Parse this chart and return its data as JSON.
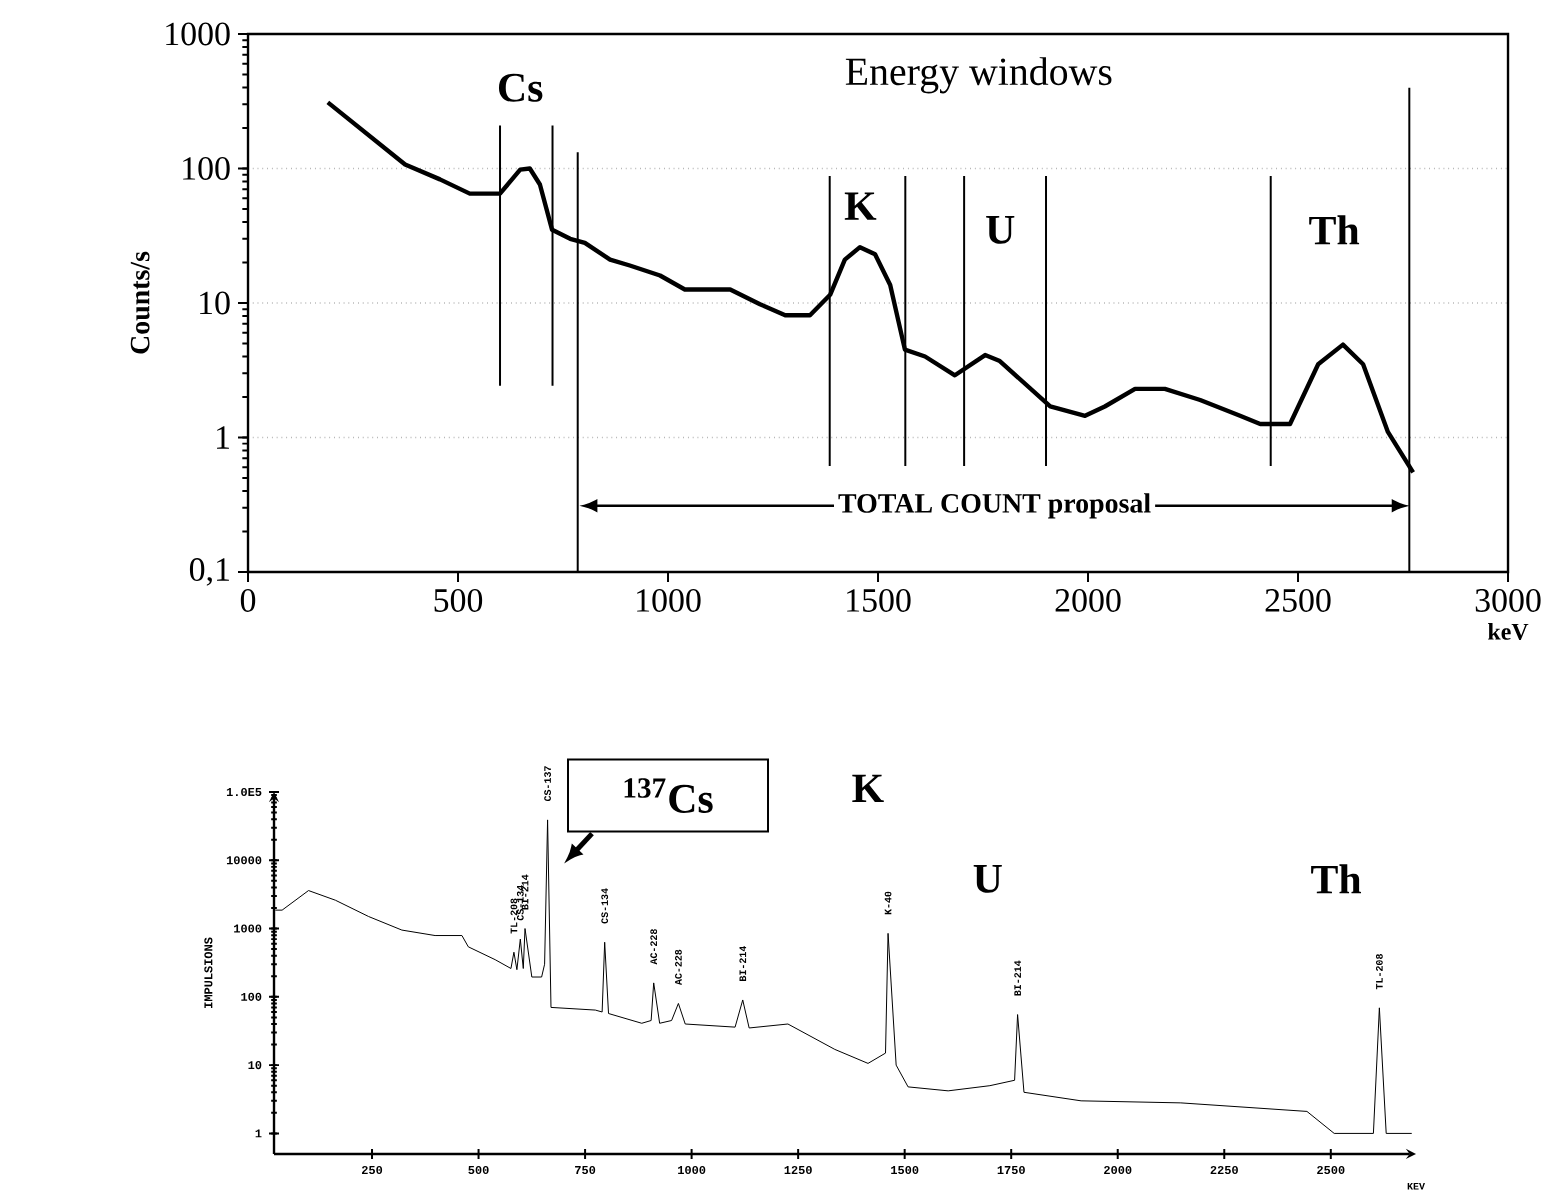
{
  "chart_data": [
    {
      "type": "line",
      "title": "Energy windows",
      "xlabel": "keV",
      "ylabel": "Counts/s",
      "color": "#000000",
      "log": "y",
      "x": [
        190,
        374,
        457,
        528,
        600,
        648,
        671,
        695,
        724,
        767,
        802,
        862,
        909,
        981,
        1040,
        1148,
        1219,
        1279,
        1338,
        1386,
        1421,
        1457,
        1493,
        1529,
        1564,
        1612,
        1683,
        1755,
        1790,
        1910,
        1993,
        2040,
        2112,
        2183,
        2267,
        2362,
        2410,
        2481,
        2548,
        2607,
        2655,
        2714,
        2774
      ],
      "values": [
        310,
        107,
        83,
        65,
        65,
        98,
        100,
        76,
        35,
        30,
        28,
        21,
        19,
        16,
        12.6,
        12.6,
        9.8,
        8.1,
        8.1,
        11.5,
        21,
        26,
        23,
        13.6,
        4.5,
        4.0,
        2.9,
        4.1,
        3.7,
        1.7,
        1.45,
        1.7,
        2.3,
        2.3,
        1.9,
        1.45,
        1.26,
        1.26,
        3.5,
        4.9,
        3.5,
        1.1,
        0.55
      ],
      "xlim": [
        0,
        3000
      ],
      "ylim": [
        0.1,
        1000
      ],
      "xticks": [
        0,
        500,
        1000,
        1500,
        2000,
        2500,
        3000
      ],
      "yticks": [
        {
          "value": 0.1,
          "label": "0,1"
        },
        1,
        10,
        100,
        1000
      ],
      "grid": "y",
      "ref_lines": [
        {
          "axis": "x",
          "value": 600
        },
        {
          "axis": "x",
          "value": 725
        },
        {
          "axis": "x",
          "value": 785
        },
        {
          "axis": "x",
          "value": 1385
        },
        {
          "axis": "x",
          "value": 1565
        },
        {
          "axis": "x",
          "value": 1705
        },
        {
          "axis": "x",
          "value": 1900
        },
        {
          "axis": "x",
          "value": 2435
        },
        {
          "axis": "x",
          "value": 2765
        }
      ],
      "annotations": [
        "Cs",
        "K",
        "U",
        "Th",
        "TOTAL COUNT  proposal"
      ]
    },
    {
      "type": "line",
      "xlabel": "KEV",
      "ylabel": "IMPULSIONS",
      "color": "#000000",
      "log": "y",
      "x": [
        23,
        39,
        101,
        164,
        242,
        320,
        398,
        461,
        476,
        539,
        576,
        583,
        590,
        598,
        605,
        609,
        625,
        648,
        655,
        662,
        670,
        774,
        790,
        796,
        805,
        883,
        905,
        911,
        925,
        953,
        969,
        985,
        1102,
        1120,
        1135,
        1226,
        1336,
        1414,
        1455,
        1461,
        1480,
        1508,
        1602,
        1700,
        1758,
        1765,
        1780,
        1914,
        2148,
        2444,
        2508,
        2600,
        2614,
        2630,
        2690
      ],
      "values": [
        1860,
        1860,
        3600,
        2600,
        1500,
        950,
        790,
        790,
        540,
        350,
        260,
        450,
        250,
        700,
        260,
        1000,
        195,
        195,
        300,
        39000,
        70,
        64,
        60,
        630,
        57,
        41,
        45,
        160,
        41,
        45,
        80,
        40,
        36,
        90,
        35,
        40,
        17,
        10.6,
        15,
        850,
        10,
        4.8,
        4.2,
        5,
        6,
        55,
        4,
        3,
        2.8,
        2.1,
        1,
        1,
        69,
        1,
        1
      ],
      "xlim": [
        20,
        2700
      ],
      "ylim": [
        0.5,
        100000
      ],
      "xticks": [
        250,
        500,
        750,
        1000,
        1250,
        1500,
        1750,
        2000,
        2250,
        2500
      ],
      "yticks": [
        1,
        10,
        100,
        1000,
        10000,
        {
          "value": 100000,
          "label": "1.0E5"
        }
      ],
      "annotations": [
        {
          "text": "TL-208",
          "x": 583,
          "y": 450
        },
        {
          "text": "CS-134",
          "x": 598,
          "y": 700
        },
        {
          "text": "BI-214",
          "x": 609,
          "y": 1000
        },
        {
          "text": "CS-137",
          "x": 662,
          "y": 39000
        },
        {
          "text": "CS-134",
          "x": 796,
          "y": 630
        },
        {
          "text": "AC-228",
          "x": 911,
          "y": 160
        },
        {
          "text": "AC-228",
          "x": 969,
          "y": 80
        },
        {
          "text": "BI-214",
          "x": 1120,
          "y": 90
        },
        {
          "text": "K-40",
          "x": 1461,
          "y": 850
        },
        {
          "text": "BI-214",
          "x": 1765,
          "y": 55
        },
        {
          "text": "TL-208",
          "x": 2614,
          "y": 69
        },
        "$^{137}$Cs",
        "K",
        "U",
        "Th"
      ]
    }
  ]
}
